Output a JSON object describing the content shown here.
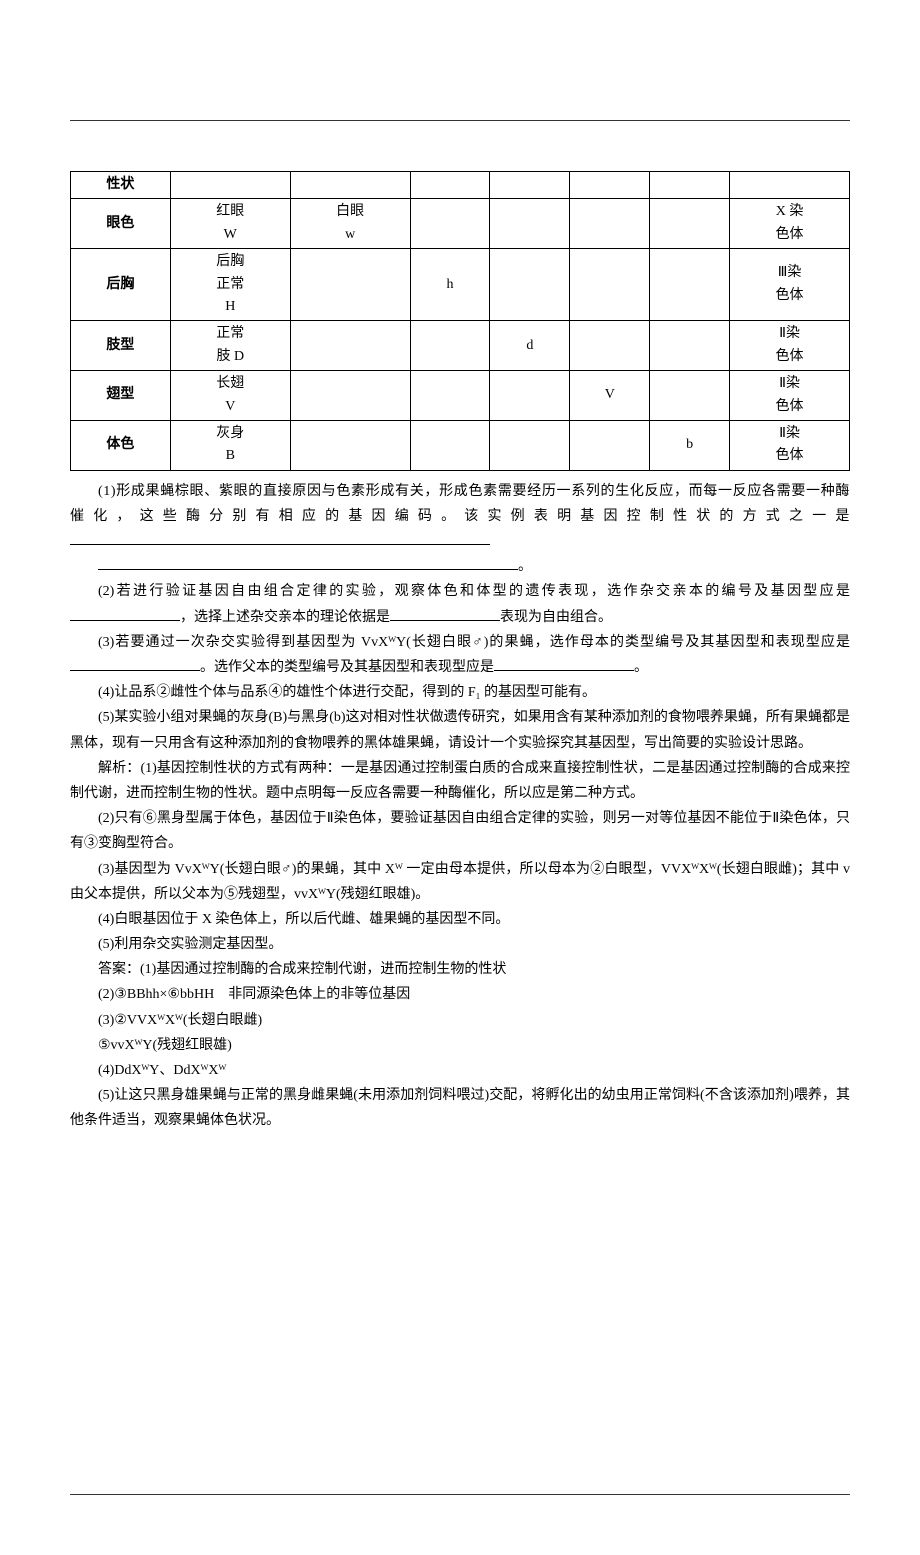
{
  "table": {
    "rows": [
      {
        "label": "性状",
        "c1": "",
        "c2": "",
        "c3": "",
        "c4": "",
        "c5": "",
        "c6": "",
        "c7": ""
      },
      {
        "label": "眼色",
        "c1": "红眼\nW",
        "c2": "白眼\nw",
        "c3": "",
        "c4": "",
        "c5": "",
        "c6": "",
        "c7": "X 染\n色体"
      },
      {
        "label": "后胸",
        "c1": "后胸\n正常\nH",
        "c2": "",
        "c3": "h",
        "c4": "",
        "c5": "",
        "c6": "",
        "c7": "Ⅲ染\n色体"
      },
      {
        "label": "肢型",
        "c1": "正常\n肢 D",
        "c2": "",
        "c3": "",
        "c4": "d",
        "c5": "",
        "c6": "",
        "c7": "Ⅱ染\n色体"
      },
      {
        "label": "翅型",
        "c1": "长翅\nV",
        "c2": "",
        "c3": "",
        "c4": "",
        "c5": "V",
        "c6": "",
        "c7": "Ⅱ染\n色体"
      },
      {
        "label": "体色",
        "c1": "灰身\nB",
        "c2": "",
        "c3": "",
        "c4": "",
        "c5": "",
        "c6": "b",
        "c7": "Ⅱ染\n色体"
      }
    ]
  },
  "paragraphs": {
    "p1a": "(1)形成果蝇棕眼、紫眼的直接原因与色素形成有关，形成色素需要经历一系列的生化反应，而每一反应各需要一种酶催化，这些酶分别有相应的基因编码。该实例表明基因控制性状的方式之一是",
    "p1b": "。",
    "p2a": "(2)若进行验证基因自由组合定律的实验，观察体色和体型的遗传表现，选作杂交亲本的编号及基因型应是",
    "p2b": "，选择上述杂交亲本的理论依据是",
    "p2c": "表现为自由组合。",
    "p3a": "(3)若要通过一次杂交实验得到基因型为 VvXᵂY(长翅白眼♂)的果蝇，选作母本的类型编号及其基因型和表现型应是",
    "p3b": "。选作父本的类型编号及其基因型和表现型应是",
    "p3c": "。",
    "p4": "(4)让品系②雌性个体与品系④的雄性个体进行交配，得到的 F₁ 的基因型可能有。",
    "p5": "(5)某实验小组对果蝇的灰身(B)与黑身(b)这对相对性状做遗传研究，如果用含有某种添加剂的食物喂养果蝇，所有果蝇都是黑体，现有一只用含有这种添加剂的食物喂养的黑体雄果蝇，请设计一个实验探究其基因型，写出简要的实验设计思路。",
    "p6": "解析：(1)基因控制性状的方式有两种：一是基因通过控制蛋白质的合成来直接控制性状，二是基因通过控制酶的合成来控制代谢，进而控制生物的性状。题中点明每一反应各需要一种酶催化，所以应是第二种方式。",
    "p7": "(2)只有⑥黑身型属于体色，基因位于Ⅱ染色体，要验证基因自由组合定律的实验，则另一对等位基因不能位于Ⅱ染色体，只有③变胸型符合。",
    "p8": "(3)基因型为 VvXᵂY(长翅白眼♂)的果蝇，其中 Xᵂ 一定由母本提供，所以母本为②白眼型，VVXᵂXᵂ(长翅白眼雌)；其中 v 由父本提供，所以父本为⑤残翅型，vvXᵂY(残翅红眼雄)。",
    "p9": "(4)白眼基因位于 X 染色体上，所以后代雌、雄果蝇的基因型不同。",
    "p10": "(5)利用杂交实验测定基因型。",
    "p11": "答案：(1)基因通过控制酶的合成来控制代谢，进而控制生物的性状",
    "p12": "(2)③BBhh×⑥bbHH　非同源染色体上的非等位基因",
    "p13": "(3)②VVXᵂXᵂ(长翅白眼雌)",
    "p14": "⑤vvXᵂY(残翅红眼雄)",
    "p15": "(4)DdXᵂY、DdXᵂXᵂ",
    "p16": "(5)让这只黑身雄果蝇与正常的黑身雌果蝇(未用添加剂饲料喂过)交配，将孵化出的幼虫用正常饲料(不含该添加剂)喂养，其他条件适当，观察果蝇体色状况。"
  }
}
